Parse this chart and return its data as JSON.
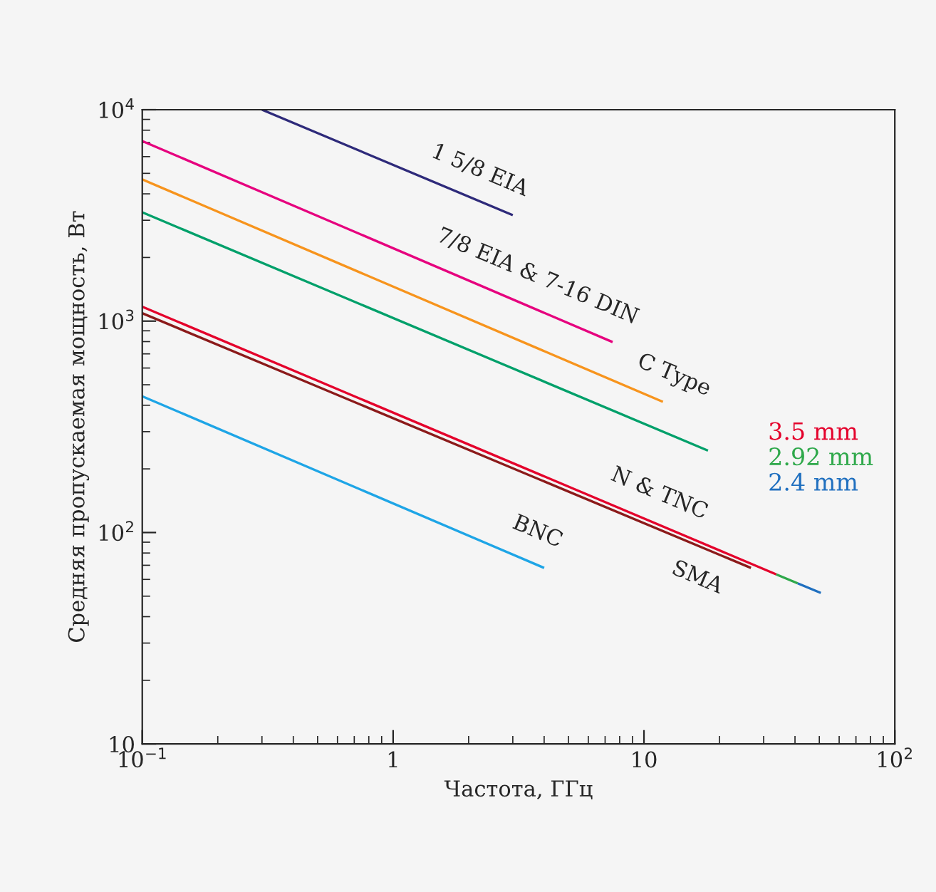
{
  "chart_data": {
    "type": "line",
    "xlabel": "Частота, ГГц",
    "ylabel": "Средняя пропускаемая мощность, Вт",
    "log": "xy",
    "xlim": [
      0.1,
      100
    ],
    "ylim": [
      10,
      10000
    ],
    "xticks": [
      {
        "value": 0.1,
        "label": "10$^{−1}$"
      },
      1,
      10,
      {
        "value": 100,
        "label": "10$^{2}$"
      }
    ],
    "yticks": [
      10,
      {
        "value": 100,
        "label": "10$^{2}$"
      },
      {
        "value": 1000,
        "label": "10$^{3}$"
      },
      {
        "value": 10000,
        "label": "10$^{4}$"
      }
    ],
    "grid": false,
    "legend": "right",
    "marker": "none",
    "line_style": "solid",
    "series": [
      {
        "color": "#2e2a7a",
        "x": [
          0.3,
          3.0
        ],
        "values": [
          10000,
          3170
        ]
      },
      {
        "color": "#e6007e",
        "x": [
          0.1,
          7.5
        ],
        "values": [
          7110,
          796
        ]
      },
      {
        "color": "#f7941d",
        "x": [
          0.1,
          11.9
        ],
        "values": [
          4680,
          415
        ]
      },
      {
        "color": "#00a06a",
        "x": [
          0.1,
          18
        ],
        "values": [
          3270,
          244
        ]
      },
      {
        "color": "#8b1a1a",
        "x": [
          0.1,
          26.7
        ],
        "values": [
          1090,
          68
        ]
      },
      {
        "name": "3.5 mm",
        "color": "#e4002b",
        "x": [
          0.1,
          33.7
        ],
        "values": [
          1170,
          63.4
        ]
      },
      {
        "name": "2.92 mm",
        "color": "#2ea84a",
        "x": [
          33.7,
          41
        ],
        "values": [
          63.4,
          57.5
        ]
      },
      {
        "name": "2.4 mm",
        "color": "#1f6fbf",
        "x": [
          41,
          50.7
        ],
        "values": [
          57.5,
          51.8
        ]
      },
      {
        "color": "#1ea5e6",
        "x": [
          0.1,
          4.0
        ],
        "values": [
          441,
          68
        ]
      }
    ],
    "annotations": [
      {
        "text": "1 5/8 EIA",
        "x": 2.0,
        "y": 3873
      },
      {
        "text": "7/8 EIA & 7-16 DIN",
        "x": 3.4,
        "y": 1219
      },
      {
        "text": "C Type",
        "x": 11.9,
        "y": 415
      },
      {
        "text": "N & TNC",
        "x": 10.4,
        "y": 114.7
      },
      {
        "text": "BNC",
        "x": 3.4,
        "y": 75.6
      },
      {
        "text": "SMA",
        "x": 18,
        "y": 81.2
      }
    ]
  }
}
